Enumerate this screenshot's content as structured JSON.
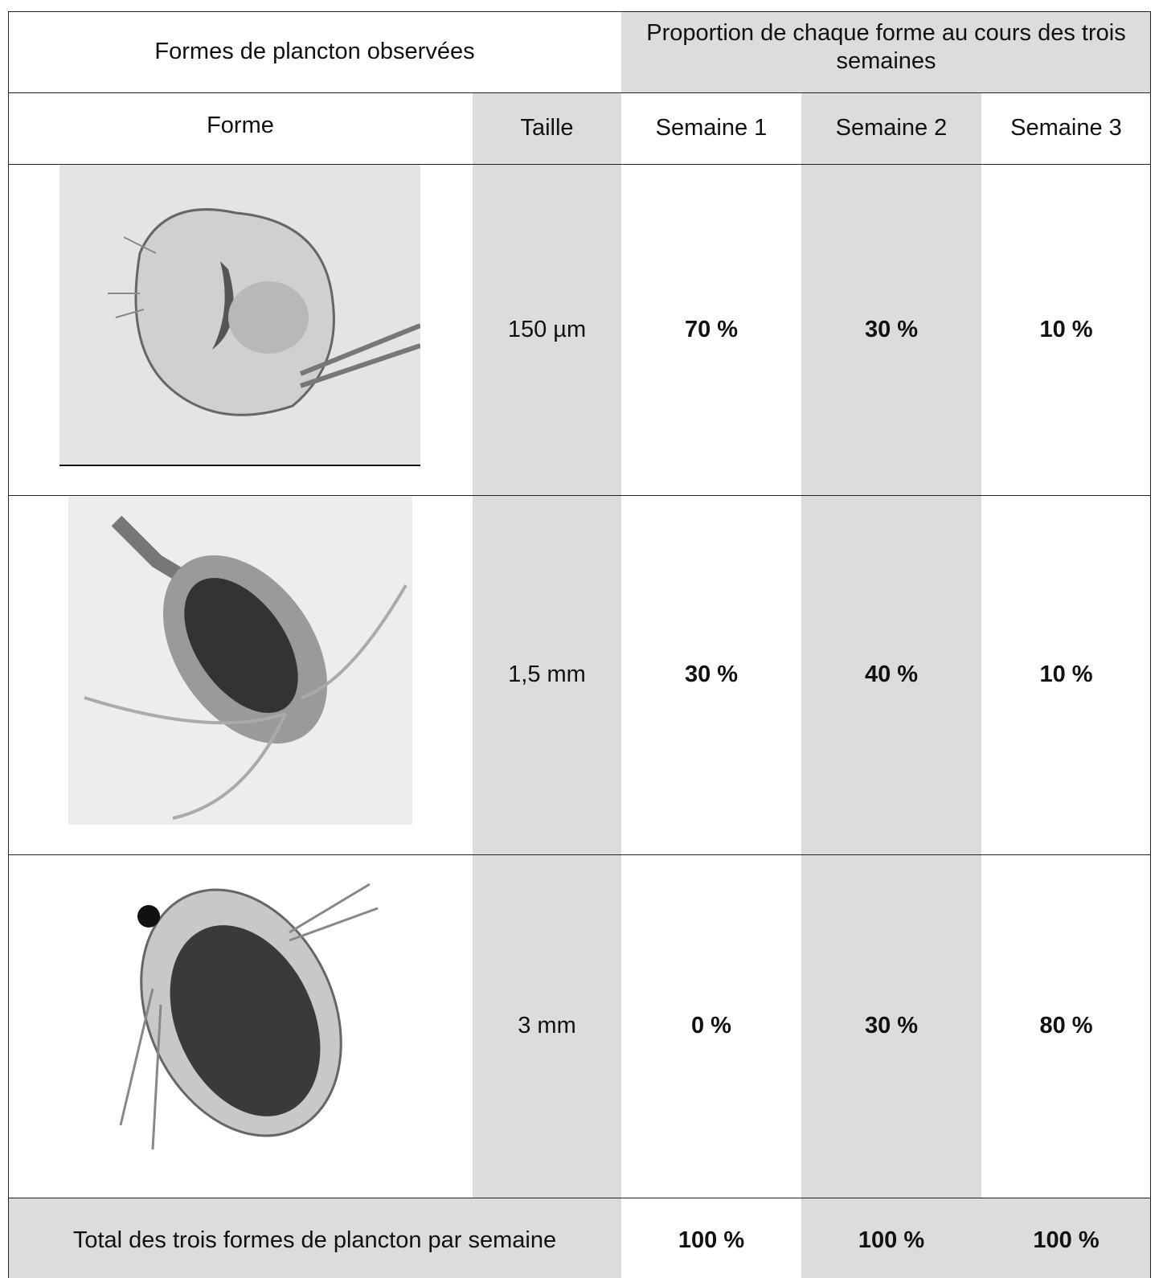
{
  "table": {
    "header": [
      "Formes de plancton observées",
      "Proportion de chaque forme au cours des trois semaines"
    ],
    "columns": [
      "Forme",
      "Taille",
      "Semaine 1",
      "Semaine 2",
      "Semaine 3"
    ],
    "rows": [
      [
        "150 µm",
        "70 %",
        "30 %",
        "10 %"
      ],
      [
        "1,5 mm",
        "30 %",
        "40 %",
        "10 %"
      ],
      [
        "3 mm",
        "0 %",
        "30 %",
        "80 %"
      ]
    ],
    "total": {
      "label": "Total des trois formes de plancton par semaine",
      "values": [
        "100 %",
        "100 %",
        "100 %"
      ]
    }
  }
}
